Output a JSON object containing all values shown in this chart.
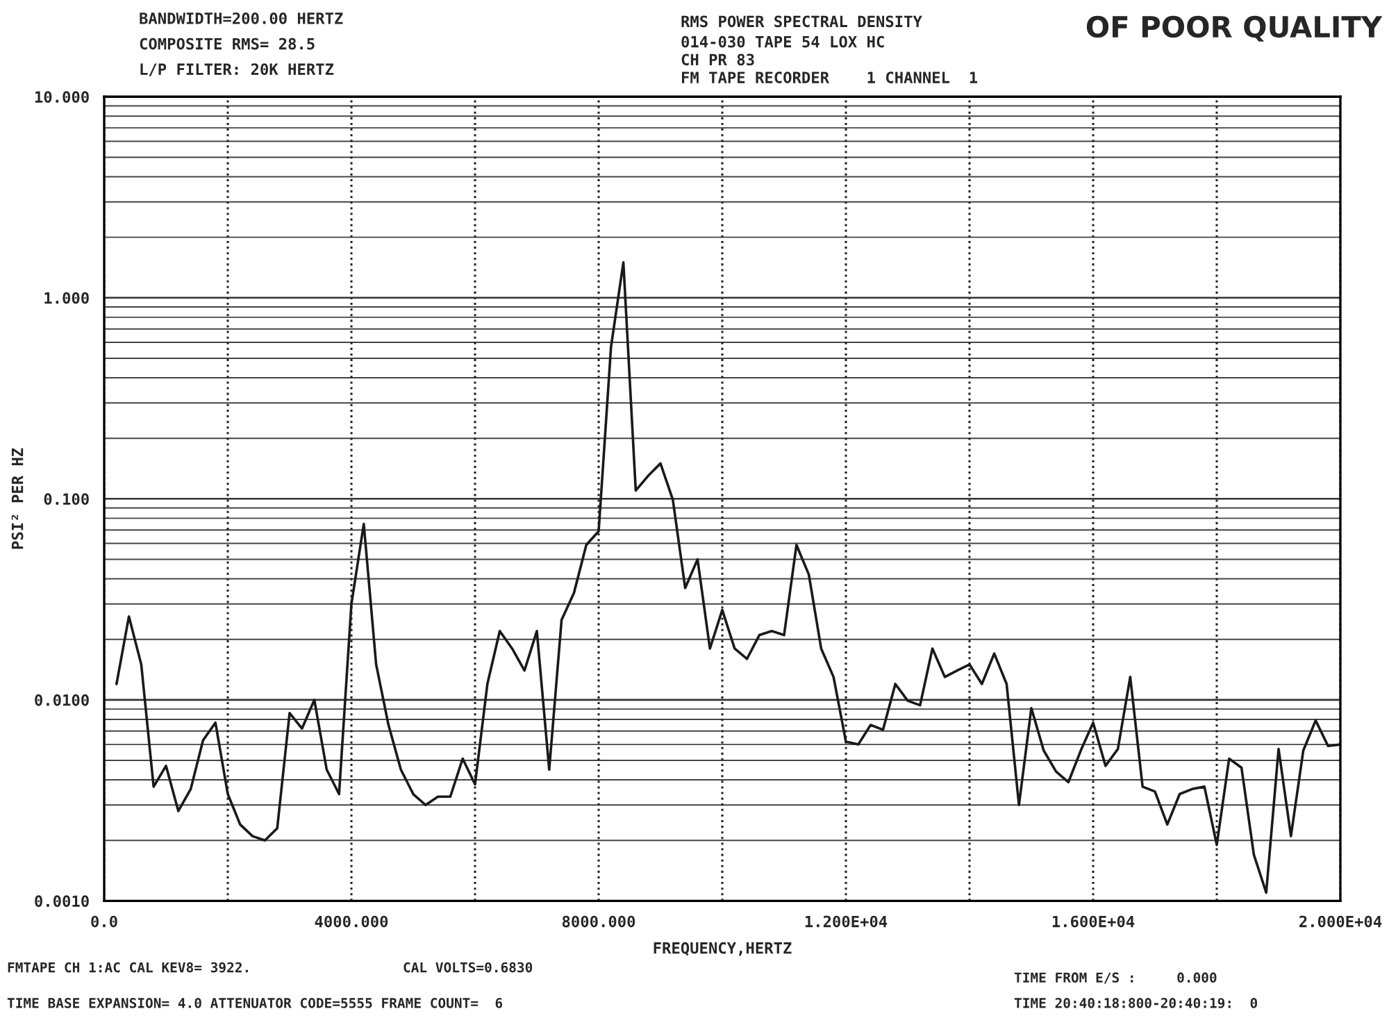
{
  "chart_data": {
    "type": "line",
    "title": "RMS POWER SPECTRAL DENSITY",
    "subtitle": "014-030 TAPE 54 LOX HC\nCH PR 83\nFM TAPE RECORDER    1 CHANNEL  1",
    "xlabel": "FREQUENCY,HERTZ",
    "ylabel": "PSI² PER HZ",
    "annotations": [
      "BANDWIDTH=200.00 HERTZ",
      "COMPOSITE RMS= 28.5",
      "L/P FILTER: 20K HERTZ",
      "OF POOR QUALITY",
      "FMTAPE CH 1:AC CAL KEV8= 3922.",
      "CAL VOLTS=0.6830",
      "TIME BASE EXPANSION= 4.0 ATTENUATOR CODE=5555 FRAME COUNT=  6",
      "TIME FROM E/S :     0.000",
      "TIME 20:40:18:800-20:40:19:  0"
    ],
    "x": [
      200,
      400,
      600,
      800,
      1000,
      1200,
      1400,
      1600,
      1800,
      2000,
      2200,
      2400,
      2600,
      2800,
      3000,
      3200,
      3400,
      3600,
      3800,
      4000,
      4200,
      4400,
      4600,
      4800,
      5000,
      5200,
      5400,
      5600,
      5800,
      6000,
      6200,
      6400,
      6600,
      6800,
      7000,
      7200,
      7400,
      7600,
      7800,
      8000,
      8200,
      8400,
      8600,
      8800,
      9000,
      9200,
      9400,
      9600,
      9800,
      10000,
      10200,
      10400,
      10600,
      10800,
      11000,
      11200,
      11400,
      11600,
      11800,
      12000,
      12200,
      12400,
      12600,
      12800,
      13000,
      13200,
      13400,
      13600,
      13800,
      14000,
      14200,
      14400,
      14600,
      14800,
      15000,
      15200,
      15400,
      15600,
      15800,
      16000,
      16200,
      16400,
      16600,
      16800,
      17000,
      17200,
      17400,
      17600,
      17800,
      18000,
      18200,
      18400,
      18600,
      18800,
      19000,
      19200,
      19400,
      19600,
      19800,
      20000
    ],
    "series": [
      {
        "color": "#1a1a1a",
        "values": [
          0.012,
          0.026,
          0.015,
          0.0037,
          0.0047,
          0.0028,
          0.0036,
          0.0063,
          0.0077,
          0.0034,
          0.0024,
          0.0021,
          0.002,
          0.0023,
          0.0086,
          0.0072,
          0.01,
          0.0045,
          0.0034,
          0.03,
          0.075,
          0.015,
          0.0075,
          0.0045,
          0.0034,
          0.003,
          0.0033,
          0.0033,
          0.0051,
          0.0038,
          0.012,
          0.022,
          0.018,
          0.014,
          0.022,
          0.0045,
          0.025,
          0.034,
          0.059,
          0.069,
          0.57,
          1.5,
          0.11,
          0.13,
          0.15,
          0.099,
          0.036,
          0.05,
          0.018,
          0.028,
          0.018,
          0.016,
          0.021,
          0.022,
          0.021,
          0.059,
          0.042,
          0.018,
          0.013,
          0.0062,
          0.006,
          0.0075,
          0.0071,
          0.012,
          0.0099,
          0.0094,
          0.018,
          0.013,
          0.014,
          0.015,
          0.012,
          0.017,
          0.012,
          0.003,
          0.0091,
          0.0056,
          0.0044,
          0.0039,
          0.0056,
          0.0077,
          0.0047,
          0.0057,
          0.013,
          0.0037,
          0.0035,
          0.0024,
          0.0034,
          0.0036,
          0.0037,
          0.0019,
          0.0051,
          0.0046,
          0.0017,
          0.0011,
          0.0057,
          0.0021,
          0.0056,
          0.0079,
          0.0059,
          0.006
        ]
      }
    ],
    "log": "y",
    "xlim": [
      0,
      20000
    ],
    "ylim": [
      0.001,
      10
    ],
    "xticks": [
      {
        "value": 0,
        "label": "0.0"
      },
      {
        "value": 2000,
        "label": null
      },
      {
        "value": 4000,
        "label": "4000.000"
      },
      {
        "value": 6000,
        "label": null
      },
      {
        "value": 8000,
        "label": "8000.000"
      },
      {
        "value": 10000,
        "label": null
      },
      {
        "value": 12000,
        "label": "1.200E+04"
      },
      {
        "value": 14000,
        "label": null
      },
      {
        "value": 16000,
        "label": "1.600E+04"
      },
      {
        "value": 18000,
        "label": null
      },
      {
        "value": 20000,
        "label": "2.000E+04"
      }
    ],
    "yticks": [
      {
        "value": 0.001,
        "label": "0.0010"
      },
      {
        "value": 0.01,
        "label": "0.0100"
      },
      {
        "value": 0.1,
        "label": "0.100"
      },
      {
        "value": 1,
        "label": "1.000"
      },
      {
        "value": 10,
        "label": "10.000"
      }
    ],
    "grid": true,
    "marker": "none",
    "line_style": "solid"
  }
}
